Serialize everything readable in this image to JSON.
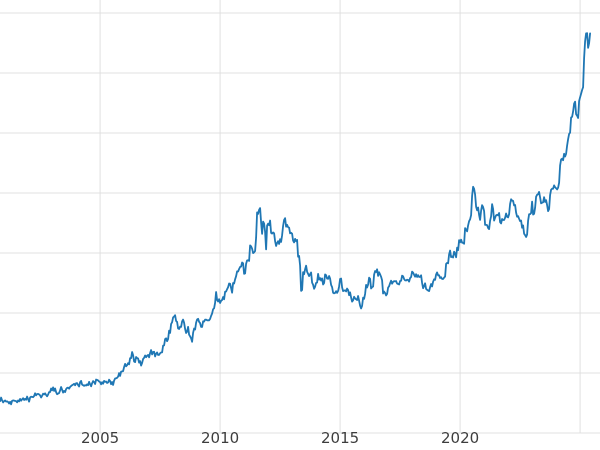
{
  "chart_data": {
    "type": "line",
    "title": "",
    "xlabel": "",
    "ylabel": "",
    "x_tick_labels": [
      "2005",
      "2010",
      "2015",
      "2020"
    ],
    "x_tick_years": [
      2005,
      2010,
      2015,
      2020
    ],
    "x_gridline_years": [
      2005,
      2010,
      2015,
      2020,
      2025
    ],
    "y_gridline_values": [
      0,
      500,
      1000,
      1500,
      2000,
      2500,
      3000,
      3500
    ],
    "y_axis_labels_visible": false,
    "xlim": [
      2000.83,
      2025.83
    ],
    "ylim": [
      0,
      3500
    ],
    "grid": true,
    "legend": false,
    "line_color": "#1f77b4",
    "grid_color": "#e0e0e0",
    "tick_label_color": "#3d3d3d",
    "background_color": "#ffffff",
    "series": {
      "name": "price",
      "interval": "monthly",
      "values_by_year": {
        "2000": [
          283,
          294,
          279,
          280,
          275,
          289,
          281,
          277,
          274,
          270,
          266,
          272
        ],
        "2001": [
          265,
          262,
          258,
          260,
          268,
          270,
          266,
          272,
          284,
          281,
          275,
          277
        ],
        "2002": [
          282,
          296,
          301,
          308,
          314,
          326,
          313,
          310,
          322,
          317,
          320,
          342
        ],
        "2003": [
          356,
          351,
          340,
          328,
          355,
          361,
          351,
          366,
          378,
          384,
          398,
          410
        ],
        "2004": [
          414,
          399,
          423,
          403,
          393,
          395,
          398,
          407,
          415,
          425,
          445,
          438
        ],
        "2005": [
          424,
          423,
          434,
          429,
          421,
          433,
          425,
          437,
          456,
          470,
          476,
          513
        ],
        "2006": [
          550,
          556,
          582,
          624,
          675,
          596,
          633,
          621,
          599,
          584,
          627,
          632
        ],
        "2007": [
          651,
          667,
          655,
          677,
          661,
          650,
          665,
          672,
          730,
          789,
          783,
          834
        ],
        "2008": [
          923,
          971,
          933,
          871,
          886,
          930,
          918,
          833,
          884,
          806,
          760,
          870
        ],
        "2009": [
          919,
          952,
          916,
          883,
          928,
          945,
          939,
          951,
          996,
          1040,
          1175,
          1096
        ],
        "2010": [
          1083,
          1108,
          1114,
          1179,
          1215,
          1244,
          1169,
          1246,
          1307,
          1346,
          1383,
          1421
        ],
        "2011": [
          1327,
          1411,
          1439,
          1563,
          1536,
          1505,
          1628,
          1826,
          1874,
          1660,
          1746,
          1531
        ],
        "2012": [
          1744,
          1770,
          1662,
          1664,
          1558,
          1598,
          1615,
          1648,
          1776,
          1719,
          1715,
          1664
        ],
        "2013": [
          1661,
          1588,
          1598,
          1469,
          1394,
          1192,
          1323,
          1394,
          1326,
          1324,
          1253,
          1202
        ],
        "2014": [
          1251,
          1326,
          1291,
          1288,
          1250,
          1315,
          1285,
          1287,
          1216,
          1164,
          1182,
          1184
        ],
        "2015": [
          1283,
          1213,
          1187,
          1180,
          1191,
          1172,
          1095,
          1135,
          1114,
          1142,
          1061,
          1060
        ],
        "2016": [
          1118,
          1234,
          1237,
          1285,
          1215,
          1320,
          1342,
          1309,
          1322,
          1272,
          1178,
          1147
        ],
        "2017": [
          1212,
          1248,
          1244,
          1266,
          1266,
          1242,
          1267,
          1311,
          1283,
          1271,
          1275,
          1291
        ],
        "2018": [
          1345,
          1318,
          1323,
          1315,
          1301,
          1250,
          1224,
          1201,
          1187,
          1215,
          1222,
          1281
        ],
        "2019": [
          1321,
          1313,
          1292,
          1283,
          1295,
          1409,
          1414,
          1520,
          1472,
          1511,
          1464,
          1523
        ],
        "2020": [
          1589,
          1586,
          1577,
          1694,
          1730,
          1781,
          1976,
          2035,
          1886,
          1879,
          1776,
          1898
        ],
        "2021": [
          1850,
          1734,
          1708,
          1769,
          1907,
          1770,
          1814,
          1814,
          1757,
          1783,
          1775,
          1829
        ],
        "2022": [
          1797,
          1909,
          1937,
          1897,
          1837,
          1807,
          1766,
          1711,
          1661,
          1633,
          1769,
          1824
        ],
        "2023": [
          1928,
          1827,
          1969,
          1990,
          1963,
          1919,
          1965,
          1940,
          1849,
          1983,
          2036,
          2063
        ],
        "2024": [
          2040,
          2044,
          2230,
          2286,
          2327,
          2327,
          2448,
          2503,
          2635,
          2744,
          2657,
          2625
        ],
        "2025": [
          2798,
          2858,
          3124,
          3330,
          3210,
          3330
        ]
      }
    }
  }
}
